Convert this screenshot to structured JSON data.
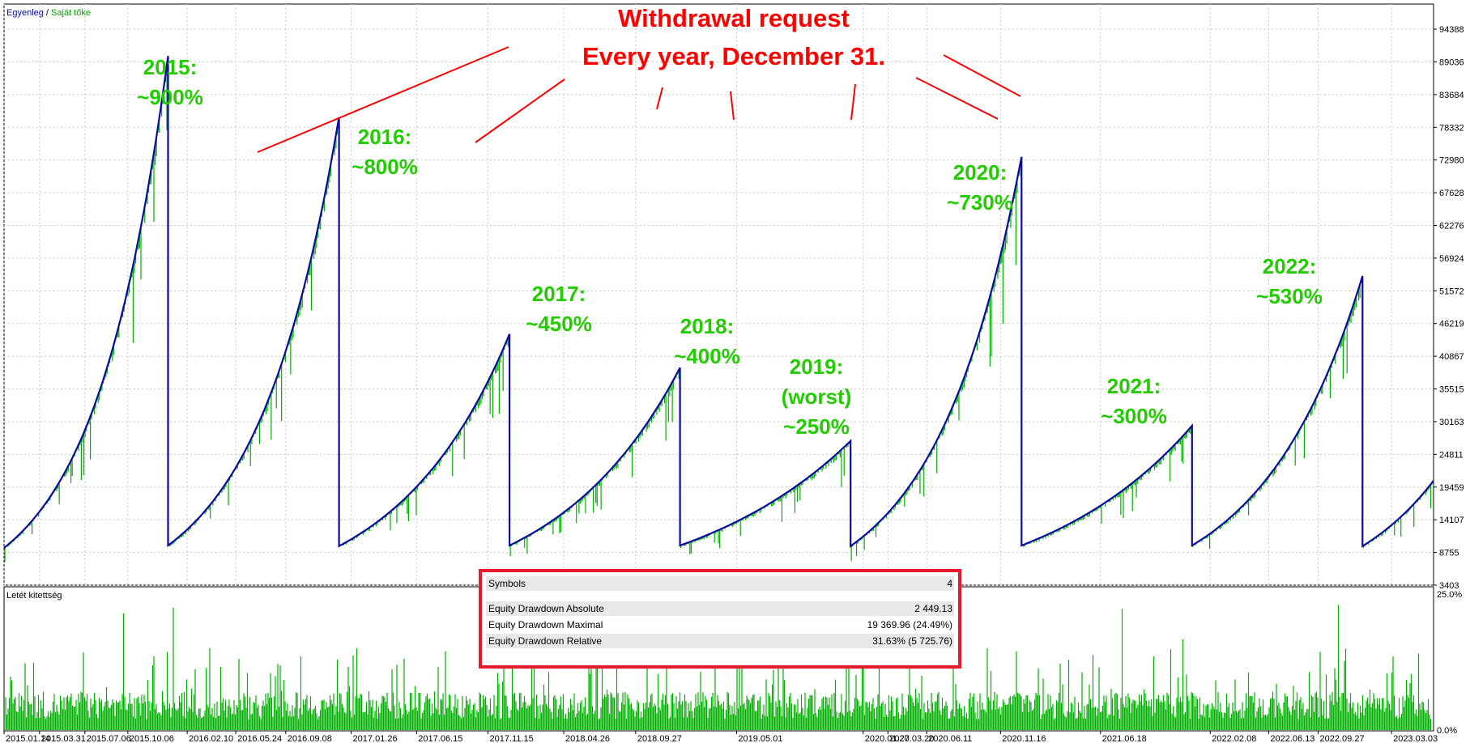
{
  "chart_data": [
    {
      "type": "line",
      "legend": {
        "balance_label": "Egyenleg",
        "separator": " / ",
        "equity_label": "Saját tőke",
        "placement": "top-left"
      },
      "colors": {
        "balance": "#0b0b9e",
        "equity": "#00b000",
        "annotation": "#ff0000",
        "year_text": "#22cc00"
      },
      "ylim": [
        3403,
        98500
      ],
      "yticks": [
        3403,
        8755,
        14107,
        19459,
        24811,
        30163,
        35515,
        40867,
        46219,
        51572,
        56924,
        62276,
        67628,
        72980,
        78332,
        83684,
        89036,
        94388
      ],
      "x": [
        "2015.01.14",
        "2015.10.06",
        "2015.12.31",
        "2016.09.20",
        "2016.12.31",
        "2017.11.15",
        "2017.12.31",
        "2018.09.27",
        "2018.12.31",
        "2019.12.31",
        "2020.11.16",
        "2020.12.31",
        "2021.06.18",
        "2021.12.31",
        "2022.09.27",
        "2022.12.31",
        "2023.03.03",
        "2023.06.01"
      ],
      "series": [
        {
          "name": "Egyenleg",
          "segments": [
            {
              "year": "2015",
              "start": 9500,
              "end": 90000
            },
            {
              "year": "2016",
              "start": 9900,
              "end": 80000
            },
            {
              "year": "2017",
              "start": 9800,
              "end": 44500
            },
            {
              "year": "2018",
              "start": 9900,
              "end": 39000
            },
            {
              "year": "2019",
              "start": 9900,
              "end": 27000
            },
            {
              "year": "2020",
              "start": 9800,
              "end": 73500
            },
            {
              "year": "2021",
              "start": 9900,
              "end": 29500
            },
            {
              "year": "2022",
              "start": 9900,
              "end": 54000
            },
            {
              "year": "2023",
              "start": 9800,
              "end": 20500
            }
          ]
        }
      ],
      "annotations": {
        "title_line1": "Withdrawal request",
        "title_line2": "Every year, December 31.",
        "years": [
          {
            "label": "2015:",
            "value": "~900%"
          },
          {
            "label": "2016:",
            "value": "~800%"
          },
          {
            "label": "2017:",
            "value": "~450%"
          },
          {
            "label": "2018:",
            "value": "~400%"
          },
          {
            "label": "2019:",
            "note": "(worst)",
            "value": "~250%"
          },
          {
            "label": "2020:",
            "value": "~730%"
          },
          {
            "label": "2021:",
            "value": "~300%"
          },
          {
            "label": "2022:",
            "value": "~530%"
          }
        ]
      }
    },
    {
      "type": "bar",
      "title": "Letét kitettség",
      "ylim": [
        0,
        25
      ],
      "yticks": [
        "25.0%",
        "0.0%"
      ],
      "color": "#00b000"
    }
  ],
  "xaxis_labels": [
    "2015.01.14",
    "2015.03.31",
    "2015.07.06",
    "2015.10.06",
    "2016.02.10",
    "2016.05.24",
    "2016.09.08",
    "2017.01.26",
    "2017.06.15",
    "2017.11.15",
    "2018.04.26",
    "2018.09.27",
    "2019.05.01",
    "2020.01.27",
    "2020.03.20",
    "2020.06.11",
    "2020.11.16",
    "2021.06.18",
    "2022.02.08",
    "2022.06.13",
    "2022.09.27",
    "2023.03.03"
  ],
  "stats": [
    {
      "label": "Symbols",
      "value": "4"
    },
    {
      "label": "",
      "value": ""
    },
    {
      "label": "Equity Drawdown Absolute",
      "value": "2 449.13"
    },
    {
      "label": "Equity Drawdown Maximal",
      "value": "19 369.96 (24.49%)"
    },
    {
      "label": "Equity Drawdown Relative",
      "value": "31.63% (5 725.76)"
    }
  ]
}
